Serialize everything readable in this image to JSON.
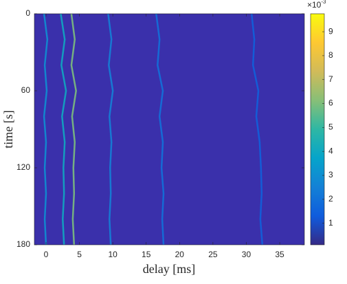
{
  "chart_data": {
    "type": "heatmap",
    "xlabel": "delay [ms]",
    "ylabel": "time [s]",
    "xlim": [
      -1.75,
      38.7
    ],
    "xticks": [
      0,
      5,
      10,
      15,
      20,
      25,
      30,
      35
    ],
    "ylim": [
      0,
      180
    ],
    "yticks": [
      0,
      60,
      120,
      180
    ],
    "y_reversed": true,
    "time": [
      0,
      20,
      40,
      60,
      80,
      100,
      120,
      140,
      160,
      180
    ],
    "ridges": [
      {
        "delay": [
          -0.3,
          0.2,
          -0.2,
          0.1,
          -0.3,
          0,
          -0.2,
          0,
          -0.2,
          0
        ],
        "intensity": 0.003
      },
      {
        "delay": [
          2.2,
          2.8,
          2.3,
          3.0,
          2.4,
          2.8,
          2.6,
          2.7,
          2.5,
          2.7
        ],
        "intensity": 0.004
      },
      {
        "delay": [
          3.8,
          4.3,
          3.8,
          4.5,
          3.9,
          4.3,
          4.1,
          4.2,
          4.0,
          4.2
        ],
        "intensity": 0.006
      },
      {
        "delay": [
          9.3,
          9.8,
          9.4,
          10,
          9.5,
          9.8,
          9.6,
          9.7,
          9.5,
          9.7
        ],
        "intensity": 0.0025
      },
      {
        "delay": [
          16.5,
          17,
          16.7,
          17.5,
          17,
          17.5,
          17.3,
          17.6,
          17.4,
          17.6
        ],
        "intensity": 0.002
      },
      {
        "delay": [
          30.8,
          31.2,
          31,
          31.8,
          31.5,
          32,
          32.2,
          32.3,
          32.1,
          32.4
        ],
        "intensity": 0.0015
      }
    ],
    "clim": [
      0.0001,
      0.00975
    ],
    "cticks": [
      {
        "value": 0.001,
        "label": "1"
      },
      {
        "value": 0.002,
        "label": "2"
      },
      {
        "value": 0.003,
        "label": "3"
      },
      {
        "value": 0.004,
        "label": "4"
      },
      {
        "value": 0.005,
        "label": "5"
      },
      {
        "value": 0.006,
        "label": "6"
      },
      {
        "value": 0.007,
        "label": "7"
      },
      {
        "value": 0.008,
        "label": "8"
      },
      {
        "value": 0.009,
        "label": "9"
      }
    ],
    "cscale_base": "×10",
    "cscale_exp": "-3",
    "colormap": [
      "#352a87",
      "#0f5cdd",
      "#1481d6",
      "#06a4ca",
      "#2eb7a4",
      "#87bf77",
      "#d1bb59",
      "#fec832",
      "#f9fb0e"
    ]
  }
}
